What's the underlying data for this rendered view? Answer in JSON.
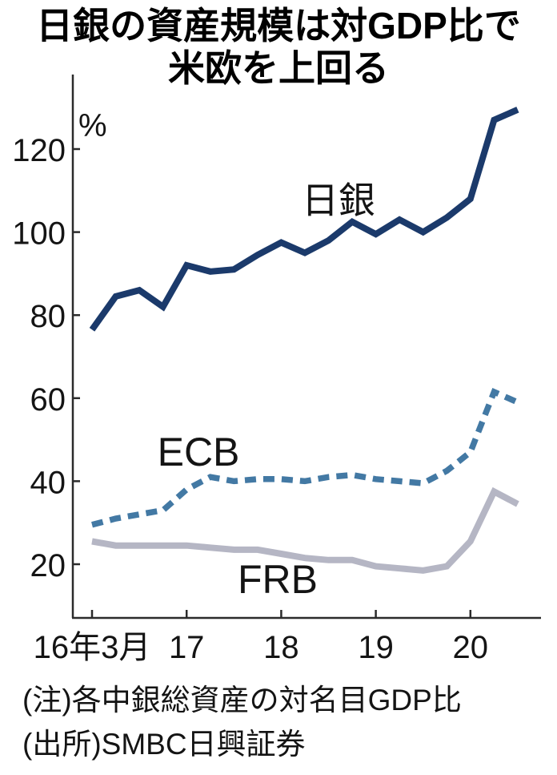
{
  "title": {
    "line1": "日銀の資産規模は対GDP比で",
    "line2": "米欧を上回る"
  },
  "chart_data": {
    "type": "line",
    "unit_label": "%",
    "y_ticks": [
      20,
      40,
      60,
      80,
      100,
      120
    ],
    "ylim": [
      7,
      135
    ],
    "grid": false,
    "x_tick_labels": [
      "16年3月",
      "17",
      "18",
      "19",
      "20"
    ],
    "x_tick_quarter_indices": [
      0,
      4,
      8,
      12,
      16
    ],
    "x_quarters": [
      "2016-03",
      "2016-06",
      "2016-09",
      "2016-12",
      "2017-03",
      "2017-06",
      "2017-09",
      "2017-12",
      "2018-03",
      "2018-06",
      "2018-09",
      "2018-12",
      "2019-03",
      "2019-06",
      "2019-09",
      "2019-12",
      "2020-03",
      "2020-06",
      "2020-09"
    ],
    "series": [
      {
        "name": "日銀",
        "style": "solid",
        "color": "#1b3a6b",
        "values": [
          76.5,
          84.5,
          86,
          82,
          92,
          90.5,
          91,
          94.5,
          97.5,
          95,
          98,
          102.5,
          99.5,
          103,
          100,
          103.5,
          108,
          127,
          129.5
        ]
      },
      {
        "name": "ECB",
        "style": "dashed",
        "color": "#4379a4",
        "values": [
          29.5,
          31,
          32,
          33,
          38,
          41,
          40,
          40.5,
          40.5,
          40,
          41,
          41.5,
          40.5,
          40,
          39.5,
          42.5,
          47,
          61.5,
          59
        ]
      },
      {
        "name": "FRB",
        "style": "solid",
        "color": "#b5b6c4",
        "values": [
          25.5,
          24.5,
          24.5,
          24.5,
          24.5,
          24,
          23.5,
          23.5,
          22.5,
          21.5,
          21,
          21,
          19.5,
          19,
          18.5,
          19.5,
          25.5,
          37.5,
          34.5
        ]
      }
    ]
  },
  "notes": {
    "line1": "(注)各中銀総資産の対名目GDP比",
    "line2": "(出所)SMBC日興証券"
  }
}
